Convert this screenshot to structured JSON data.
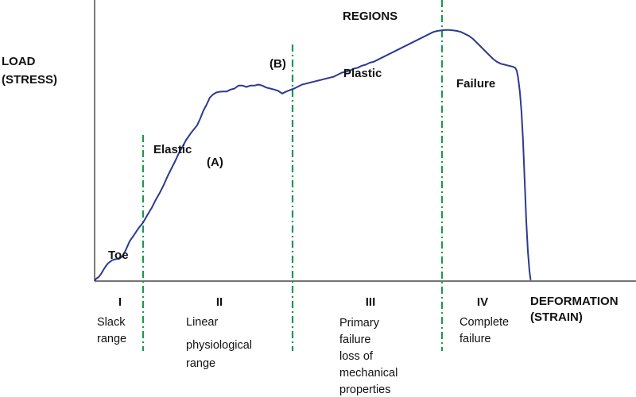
{
  "chart_data": {
    "type": "line",
    "title": "",
    "ylabel": [
      "LOAD",
      "(STRESS)"
    ],
    "xlabel": [
      "DEFORMATION",
      "(STRAIN)"
    ],
    "regions_title": "REGIONS",
    "curve_color": "#2c3a8f",
    "divider_color": "#1a9a50",
    "curve_points": [
      [
        0,
        0
      ],
      [
        2,
        1.2
      ],
      [
        5,
        2
      ],
      [
        8,
        3.5
      ],
      [
        11,
        5.6
      ],
      [
        14,
        7.5
      ],
      [
        17,
        9
      ],
      [
        22,
        10.5
      ],
      [
        26,
        11
      ],
      [
        31,
        11.2
      ],
      [
        35,
        12.5
      ],
      [
        39,
        15.5
      ],
      [
        44,
        20
      ],
      [
        50,
        23.5
      ],
      [
        55,
        26.5
      ],
      [
        61,
        29.5
      ],
      [
        66,
        33
      ],
      [
        72,
        37
      ],
      [
        77,
        41
      ],
      [
        82,
        44.5
      ],
      [
        87,
        48.5
      ],
      [
        92,
        53
      ],
      [
        97,
        57
      ],
      [
        102,
        61
      ],
      [
        106,
        64.5
      ],
      [
        111,
        68
      ],
      [
        115,
        71
      ],
      [
        121,
        74.5
      ],
      [
        126,
        77
      ],
      [
        129,
        78.5
      ],
      [
        133,
        82
      ],
      [
        137,
        86
      ],
      [
        141,
        89
      ],
      [
        145,
        92.5
      ],
      [
        149,
        94
      ],
      [
        153,
        95
      ],
      [
        156,
        95.3
      ],
      [
        161,
        95.5
      ],
      [
        166,
        95.5
      ],
      [
        171,
        96.5
      ],
      [
        176,
        97
      ],
      [
        181,
        98.5
      ],
      [
        186,
        98.5
      ],
      [
        191,
        97.8
      ],
      [
        196,
        98.5
      ],
      [
        201,
        98.5
      ],
      [
        206,
        99
      ],
      [
        211,
        98.5
      ],
      [
        216,
        97.5
      ],
      [
        221,
        97
      ],
      [
        226,
        96.5
      ],
      [
        231,
        95.8
      ],
      [
        236,
        94.5
      ],
      [
        241,
        95.5
      ],
      [
        246,
        96.3
      ],
      [
        251,
        97
      ],
      [
        256,
        98
      ],
      [
        261,
        99
      ],
      [
        266,
        99.5
      ],
      [
        271,
        100
      ],
      [
        276,
        100.5
      ],
      [
        281,
        101
      ],
      [
        286,
        101.5
      ],
      [
        291,
        102
      ],
      [
        296,
        102.5
      ],
      [
        301,
        103
      ],
      [
        306,
        104
      ],
      [
        311,
        105
      ],
      [
        316,
        105.5
      ],
      [
        321,
        106
      ],
      [
        326,
        107
      ],
      [
        331,
        107.5
      ],
      [
        336,
        108.5
      ],
      [
        341,
        109
      ],
      [
        346,
        110
      ],
      [
        351,
        110.5
      ],
      [
        356,
        111.5
      ],
      [
        361,
        112.5
      ],
      [
        366,
        113.5
      ],
      [
        371,
        114.5
      ],
      [
        376,
        115.5
      ],
      [
        381,
        116.5
      ],
      [
        386,
        117.5
      ],
      [
        391,
        118.5
      ],
      [
        396,
        119.5
      ],
      [
        401,
        120.5
      ],
      [
        406,
        121.5
      ],
      [
        411,
        122.5
      ],
      [
        416,
        123.5
      ],
      [
        421,
        124.5
      ],
      [
        426,
        125.5
      ],
      [
        431,
        126
      ],
      [
        436,
        126.3
      ],
      [
        441,
        126.5
      ],
      [
        446,
        126.5
      ],
      [
        451,
        126.3
      ],
      [
        456,
        126
      ],
      [
        461,
        125.5
      ],
      [
        466,
        124.5
      ],
      [
        471,
        123.5
      ],
      [
        476,
        122
      ],
      [
        481,
        120
      ],
      [
        486,
        118
      ],
      [
        491,
        116
      ],
      [
        496,
        114
      ],
      [
        501,
        112
      ],
      [
        506,
        110.5
      ],
      [
        511,
        109.5
      ],
      [
        516,
        109
      ],
      [
        521,
        108.5
      ],
      [
        526,
        108
      ],
      [
        529,
        107.5
      ],
      [
        531,
        106
      ],
      [
        532.5,
        103
      ],
      [
        533.5,
        100
      ],
      [
        535,
        95
      ],
      [
        537,
        85
      ],
      [
        539,
        70
      ],
      [
        541,
        50
      ],
      [
        543,
        30
      ],
      [
        545,
        15
      ],
      [
        547,
        5
      ],
      [
        548.5,
        0.5
      ]
    ],
    "x_range": [
      0,
      682
    ],
    "y_range": [
      0,
      140
    ],
    "dividers_x": [
      61,
      249,
      437
    ],
    "curve_labels": [
      "Toe",
      "Elastic",
      "(A)",
      "(B)",
      "Plastic",
      "Failure"
    ],
    "region_numerals": [
      "I",
      "II",
      "III",
      "IV"
    ],
    "region_descriptions": [
      [
        "Slack",
        "range"
      ],
      [
        "Linear",
        "physiological",
        "range"
      ],
      [
        "Primary",
        "failure",
        "loss of",
        "mechanical",
        "properties"
      ],
      [
        "Complete",
        "failure"
      ]
    ],
    "grid": false,
    "legend": "none"
  }
}
